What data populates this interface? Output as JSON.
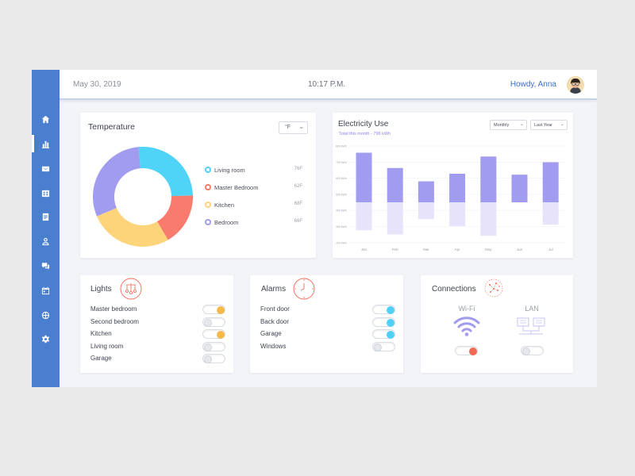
{
  "theme": {
    "sidebar": "#4a7fd0",
    "accent": "#3e6fc4",
    "bar": "#a29cf0",
    "bar_light": "#e6e3fb",
    "lights_on": "#f5b94a",
    "alarms_on": "#4fd0f5",
    "wifi_on": "#f06a55"
  },
  "sidebar": {
    "items": [
      {
        "icon": "home-icon",
        "active": false
      },
      {
        "icon": "bar-chart-icon",
        "active": true
      },
      {
        "icon": "mail-icon",
        "active": false
      },
      {
        "icon": "calendar-grid-icon",
        "active": false
      },
      {
        "icon": "document-icon",
        "active": false
      },
      {
        "icon": "user-icon",
        "active": false
      },
      {
        "icon": "chat-icon",
        "active": false
      },
      {
        "icon": "calendar-icon",
        "active": false
      },
      {
        "icon": "globe-icon",
        "active": false
      },
      {
        "icon": "gear-icon",
        "active": false
      }
    ]
  },
  "header": {
    "date": "May 30, 2019",
    "time": "10:17 P.M.",
    "greeting": "Howdy, Anna"
  },
  "temperature": {
    "title": "Temperature",
    "unit": "°F",
    "rooms": [
      {
        "name": "Living room",
        "value": "76F",
        "color": "#4fd4f7"
      },
      {
        "name": "Master Bedroom",
        "value": "62F",
        "color": "#f97b6d"
      },
      {
        "name": "Kitchen",
        "value": "68F",
        "color": "#fed47a"
      },
      {
        "name": "Bedroom",
        "value": "66F",
        "color": "#a29cf0"
      }
    ]
  },
  "electricity": {
    "title": "Electricity Use",
    "subtitle": "Total this month - 796 kWh",
    "period": "Monthly",
    "range": "Last Year"
  },
  "chart_data": {
    "type": "bar",
    "title": "Electricity Use",
    "categories": [
      "Jan",
      "Feb",
      "Mar",
      "Apr",
      "May",
      "Jun",
      "Jul"
    ],
    "y_ticks": [
      "800 kWh",
      "700 kWh",
      "600 kWh",
      "500 kWh",
      "400 kWh",
      "300 kWh",
      "200 kWh",
      "0 kWh"
    ],
    "series": [
      {
        "values": [
          780,
          620,
          480,
          560,
          740,
          550,
          680
        ]
      },
      {
        "values": [
          200,
          230,
          120,
          170,
          240,
          0,
          160
        ]
      }
    ]
  },
  "lights": {
    "title": "Lights",
    "rows": [
      {
        "name": "Master bedroom",
        "on": true
      },
      {
        "name": "Second bedroom",
        "on": false
      },
      {
        "name": "Kitchen",
        "on": true
      },
      {
        "name": "Living room",
        "on": false
      },
      {
        "name": "Garage",
        "on": false
      }
    ]
  },
  "alarms": {
    "title": "Alarms",
    "rows": [
      {
        "name": "Front door",
        "on": true
      },
      {
        "name": "Back door",
        "on": true
      },
      {
        "name": "Garage",
        "on": true
      },
      {
        "name": "Windows",
        "on": false
      }
    ]
  },
  "connections": {
    "title": "Connections",
    "wifi": {
      "label": "Wi-Fi",
      "on": true
    },
    "lan": {
      "label": "LAN",
      "on": false
    }
  }
}
